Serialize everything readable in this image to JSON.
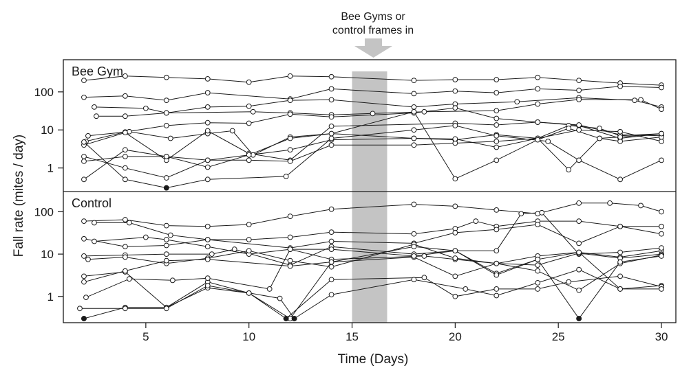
{
  "figure": {
    "annotation_line1": "Bee Gyms or",
    "annotation_line2": "control frames in",
    "ylabel": "Fall rate (mites / day)",
    "xlabel": "Time (Days)"
  },
  "colors": {
    "line": "#1a1a1a",
    "shade": "#c4c4c4",
    "arrow": "#c4c4c4",
    "frame": "#1a1a1a",
    "filled_point": "#1a1a1a"
  },
  "chart_data": [
    {
      "type": "line",
      "title": "Bee Gym",
      "x_range": [
        1,
        30.7
      ],
      "y_scale": "log",
      "y_range": [
        0.24,
        700
      ],
      "xticks": [
        5,
        10,
        15,
        20,
        25,
        30
      ],
      "yticks": [
        1,
        10,
        100
      ],
      "shaded_interval": [
        15,
        16.7
      ],
      "series": [
        {
          "x": [
            2,
            4,
            6,
            8,
            10,
            12,
            14,
            18,
            20,
            22,
            24,
            26,
            28,
            30
          ],
          "y": [
            200,
            260,
            240,
            220,
            180,
            260,
            250,
            200,
            210,
            210,
            240,
            200,
            170,
            150
          ]
        },
        {
          "x": [
            2,
            4,
            6,
            8,
            12,
            14,
            18,
            20,
            22,
            24,
            26,
            28,
            30
          ],
          "y": [
            72,
            78,
            60,
            95,
            65,
            120,
            90,
            105,
            95,
            120,
            110,
            140,
            130
          ]
        },
        {
          "x": [
            2.5,
            5,
            6,
            8,
            10,
            12,
            14,
            18,
            20,
            23,
            26,
            28.7,
            30
          ],
          "y": [
            40,
            37,
            28,
            40,
            42,
            60,
            62,
            40,
            48,
            55,
            70,
            60,
            40
          ]
        },
        {
          "x": [
            2.6,
            4,
            6,
            10.2,
            12,
            14,
            16,
            18.5,
            22,
            24,
            26,
            29,
            30
          ],
          "y": [
            23,
            23,
            28,
            30,
            28,
            25,
            27,
            30,
            32,
            48,
            63,
            62,
            35
          ]
        },
        {
          "x": [
            2.1,
            4,
            6,
            8,
            10,
            12,
            14,
            18,
            20,
            22,
            24,
            26,
            28,
            30
          ],
          "y": [
            5,
            8.8,
            13,
            15.5,
            15,
            26,
            22,
            28,
            38,
            20,
            16,
            13,
            6,
            8
          ]
        },
        {
          "x": [
            2.2,
            4.2,
            6.2,
            8,
            9.2,
            10.2,
            12,
            14,
            18,
            20,
            22,
            24,
            25.5,
            27,
            28,
            30
          ],
          "y": [
            7,
            9,
            6,
            8,
            9.5,
            2.2,
            6.5,
            8,
            6,
            5.5,
            7.5,
            6,
            13,
            11,
            7,
            8
          ]
        },
        {
          "x": [
            2,
            4,
            6,
            8,
            10,
            12,
            14,
            20,
            22,
            24,
            26,
            28,
            30
          ],
          "y": [
            4,
            8.5,
            1.6,
            9.5,
            2.4,
            1.6,
            12.5,
            15,
            13.5,
            16,
            13.5,
            7.5,
            7
          ]
        },
        {
          "x": [
            2,
            4,
            6,
            8,
            10,
            12,
            14,
            18,
            20,
            22,
            24,
            26,
            28,
            30
          ],
          "y": [
            1.5,
            2,
            2,
            1.6,
            1.6,
            1.5,
            4,
            4,
            4.5,
            5,
            6,
            10,
            9,
            5
          ]
        },
        {
          "x": [
            2,
            4,
            6,
            8,
            12,
            14,
            18,
            20,
            22,
            24,
            25.5,
            27,
            28,
            30
          ],
          "y": [
            2,
            1,
            0.55,
            1.6,
            3,
            5.5,
            6,
            5.8,
            3.5,
            6,
            0.9,
            6,
            5,
            6.5
          ]
        },
        {
          "x": [
            2,
            4,
            6,
            8,
            10,
            12,
            14,
            18,
            20,
            22,
            24,
            25.5,
            27,
            28,
            30
          ],
          "y": [
            0.5,
            3,
            2,
            1.05,
            2.2,
            6,
            8,
            30,
            0.52,
            1.6,
            5.5,
            11,
            6,
            6.5,
            8
          ]
        },
        {
          "x": [
            2,
            4,
            6,
            8,
            11.8,
            14,
            18,
            20,
            22,
            24.5,
            26,
            28,
            30
          ],
          "y": [
            4.8,
            0.5,
            0.3,
            0.5,
            0.6,
            6,
            10,
            13,
            7,
            5,
            1.6,
            0.5,
            1.6
          ]
        }
      ],
      "filled_points": [
        {
          "x": 6,
          "y": 0.3
        }
      ]
    },
    {
      "type": "line",
      "title": "Control",
      "x_range": [
        1,
        30.7
      ],
      "y_scale": "log",
      "y_range": [
        0.24,
        300
      ],
      "xticks": [
        5,
        10,
        15,
        20,
        25,
        30
      ],
      "yticks": [
        1,
        10,
        100
      ],
      "shaded_interval": [
        15,
        16.7
      ],
      "series": [
        {
          "x": [
            2,
            4,
            6,
            8,
            10,
            12,
            14,
            18,
            20,
            22,
            24,
            26,
            27.5,
            29,
            30
          ],
          "y": [
            60,
            65,
            47,
            45,
            50,
            78,
            115,
            150,
            135,
            110,
            90,
            160,
            160,
            140,
            100
          ]
        },
        {
          "x": [
            2.5,
            4.2,
            6.2,
            8,
            10,
            12,
            14,
            18,
            20,
            21,
            22,
            24,
            26,
            28,
            30
          ],
          "y": [
            55,
            55,
            28,
            22,
            22,
            25,
            33,
            30,
            40,
            60,
            45,
            60,
            60,
            45,
            30
          ]
        },
        {
          "x": [
            2,
            4,
            6,
            8,
            12,
            14,
            18,
            20,
            22,
            24,
            26,
            28,
            30
          ],
          "y": [
            23,
            15,
            16,
            22,
            14,
            20,
            18,
            32,
            38,
            50,
            18,
            45,
            45
          ]
        },
        {
          "x": [
            2.5,
            5,
            6,
            8,
            10,
            12,
            14,
            18.5,
            20,
            22,
            24,
            26,
            28,
            30
          ],
          "y": [
            20,
            25,
            22,
            15,
            10,
            13,
            7.5,
            9,
            7.5,
            6,
            9,
            11,
            8.5,
            12
          ]
        },
        {
          "x": [
            2,
            4,
            6,
            8.2,
            9.3,
            12,
            14,
            18,
            20,
            22,
            23.2,
            24.2,
            26,
            28,
            30
          ],
          "y": [
            9,
            9.5,
            10,
            10,
            13,
            5.5,
            15,
            10,
            12,
            12,
            90,
            95,
            10,
            11,
            14
          ]
        },
        {
          "x": [
            2.2,
            4,
            6,
            8,
            10,
            12,
            14,
            18,
            20,
            22,
            24,
            26,
            28,
            30
          ],
          "y": [
            7.5,
            8.5,
            6,
            8,
            12,
            7,
            5,
            17,
            8,
            6,
            5.5,
            10.5,
            8,
            10
          ]
        },
        {
          "x": [
            2,
            4,
            6,
            8,
            10,
            12,
            14,
            18,
            20,
            22,
            24,
            26,
            28,
            30
          ],
          "y": [
            3,
            3.8,
            0.55,
            2.2,
            1.2,
            0.3,
            6.5,
            8.5,
            3,
            6,
            4,
            1.4,
            6,
            9.5
          ]
        },
        {
          "x": [
            2.1,
            4.2,
            6.3,
            8,
            11,
            12,
            14,
            18,
            20,
            22,
            24,
            26,
            28,
            30
          ],
          "y": [
            0.95,
            2.6,
            2.4,
            2.7,
            1.5,
            13,
            13,
            9,
            12,
            3.5,
            7.5,
            11,
            1.5,
            1.8
          ]
        },
        {
          "x": [
            2,
            4,
            6,
            8,
            10,
            11.8,
            14,
            18.5,
            20,
            22,
            24,
            25.5,
            28,
            30
          ],
          "y": [
            0.3,
            0.55,
            0.55,
            1.6,
            1.2,
            0.3,
            2.5,
            2.8,
            1.0,
            1.5,
            1.5,
            2.2,
            3,
            1.7
          ]
        },
        {
          "x": [
            1.8,
            4,
            6,
            8,
            11.5,
            12.2,
            14,
            18,
            20.5,
            22,
            24,
            26,
            28,
            30
          ],
          "y": [
            0.52,
            0.52,
            0.52,
            1.8,
            0.9,
            0.3,
            1.1,
            2.5,
            1.5,
            1.05,
            2.1,
            4.3,
            1.5,
            1.5
          ]
        },
        {
          "x": [
            2,
            4,
            6,
            8,
            12,
            14,
            18,
            20,
            22,
            24,
            26,
            28,
            30
          ],
          "y": [
            2.2,
            4,
            7,
            7.5,
            5.2,
            6.5,
            15,
            12,
            3.2,
            7.5,
            0.3,
            6.5,
            9
          ]
        }
      ],
      "filled_points": [
        {
          "x": 2,
          "y": 0.3
        },
        {
          "x": 11.8,
          "y": 0.3
        },
        {
          "x": 12.2,
          "y": 0.3
        },
        {
          "x": 26,
          "y": 0.3
        }
      ]
    }
  ]
}
